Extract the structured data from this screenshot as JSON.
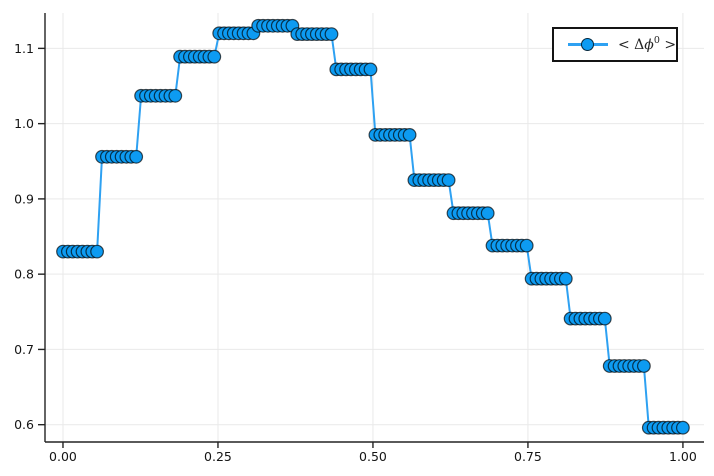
{
  "chart_data": {
    "type": "line",
    "grid": true,
    "legend_position": "top-right",
    "xlim": [
      -0.029,
      1.034
    ],
    "ylim": [
      0.577,
      1.147
    ],
    "x_ticks": {
      "values": [
        0.0,
        0.25,
        0.5,
        0.75,
        1.0
      ],
      "labels": [
        "0.00",
        "0.25",
        "0.50",
        "0.75",
        "1.00"
      ]
    },
    "y_ticks": {
      "values": [
        0.6,
        0.7,
        0.8,
        0.9,
        1.0,
        1.1
      ],
      "labels": [
        "0.6",
        "0.7",
        "0.8",
        "0.9",
        "1.0",
        "1.1"
      ]
    },
    "series": [
      {
        "name": "< Δϕ⁰ >",
        "marker": "circle",
        "x_range": [
          0.0,
          1.0
        ],
        "n_points": 128,
        "points_per_step": 8,
        "x_description": "128 evenly spaced points from 0 to 1; y is constant over each group of 8 consecutive points",
        "step_levels": [
          0.83,
          0.956,
          1.037,
          1.089,
          1.12,
          1.13,
          1.119,
          1.072,
          0.985,
          0.925,
          0.881,
          0.838,
          0.794,
          0.741,
          0.678,
          0.596
        ]
      }
    ]
  },
  "legend": {
    "label": "< Δϕ⁰ >",
    "prefix": "< Δ",
    "phi": "ϕ",
    "superscript": "0",
    "suffix": " >"
  },
  "colors": {
    "line": "#2EA1F2",
    "marker_fill": "#0D9BF2",
    "marker_stroke": "#000000",
    "grid": "#E9E9E9",
    "spine": "#232323",
    "tick_text": "#151515",
    "background": "#FFFFFF"
  }
}
